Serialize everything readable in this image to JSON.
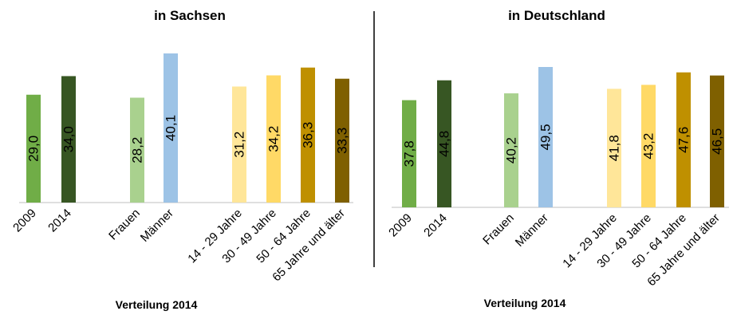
{
  "chart_data": [
    {
      "type": "bar",
      "title": "in Sachsen",
      "footer_label": "Verteilung 2014",
      "categories": [
        "2009",
        "2014",
        "Frauen",
        "Männer",
        "14 - 29 Jahre",
        "30 - 49 Jahre",
        "50 - 64 Jahre",
        "65 Jahre und älter"
      ],
      "values": [
        29.0,
        34.0,
        28.2,
        40.1,
        31.2,
        34.2,
        36.3,
        33.3
      ],
      "value_labels": [
        "29,0",
        "34,0",
        "28,2",
        "40,1",
        "31,2",
        "34,2",
        "36,3",
        "33,3"
      ],
      "colors": [
        "#70ad47",
        "#375623",
        "#a9d18e",
        "#9dc3e6",
        "#ffe699",
        "#ffd966",
        "#bf9000",
        "#7f6000"
      ],
      "ylim": [
        0,
        45
      ],
      "grid": false,
      "legend": "none"
    },
    {
      "type": "bar",
      "title": "in Deutschland",
      "footer_label": "Verteilung 2014",
      "categories": [
        "2009",
        "2014",
        "Frauen",
        "Männer",
        "14 - 29 Jahre",
        "30 - 49 Jahre",
        "50 - 64 Jahre",
        "65 Jahre und älter"
      ],
      "values": [
        37.8,
        44.8,
        40.2,
        49.5,
        41.8,
        43.2,
        47.6,
        46.5
      ],
      "value_labels": [
        "37,8",
        "44,8",
        "40,2",
        "49,5",
        "41,8",
        "43,2",
        "47,6",
        "46,5"
      ],
      "colors": [
        "#70ad47",
        "#375623",
        "#a9d18e",
        "#9dc3e6",
        "#ffe699",
        "#ffd966",
        "#bf9000",
        "#7f6000"
      ],
      "ylim": [
        0,
        55
      ],
      "grid": false,
      "legend": "none"
    }
  ]
}
